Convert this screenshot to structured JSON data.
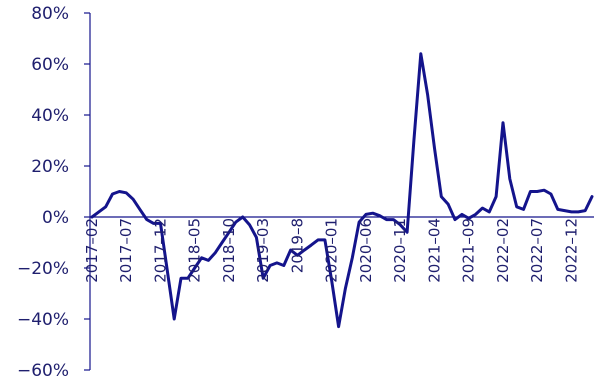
{
  "chart_data": {
    "type": "line",
    "title": "",
    "xlabel": "",
    "ylabel": "",
    "ylim": [
      -60,
      80
    ],
    "y_ticks": [
      "80%",
      "60%",
      "40%",
      "20%",
      "0%",
      "−20%",
      "−40%",
      "−60%"
    ],
    "y_tick_values": [
      80,
      60,
      40,
      20,
      0,
      -20,
      -40,
      -60
    ],
    "x_tick_labels": [
      "2017–02",
      "2017–07",
      "2017–12",
      "2018–05",
      "2018–10",
      "2019–03",
      "2019–8",
      "2020–01",
      "2020–06",
      "2020–11",
      "2021–04",
      "2021–09",
      "2022–02",
      "2022–07",
      "2022–12"
    ],
    "x_start": "2017-02",
    "grid": false,
    "line_color": "#14148c",
    "series": [
      {
        "values": [
          0.0,
          2.0,
          4.0,
          9.0,
          10.0,
          9.5,
          7.0,
          3.0,
          -1.0,
          -2.5,
          -2.5,
          -21.0,
          -40.0,
          -24.0,
          -24.0,
          -20.0,
          -16.0,
          -17.0,
          -14.0,
          -10.0,
          -6.0,
          -2.0,
          0.0,
          -3.0,
          -8.0,
          -24.0,
          -19.0,
          -18.0,
          -19.0,
          -13.0,
          -15.0,
          -13.0,
          -11.0,
          -9.0,
          -9.0,
          -25.0,
          -43.0,
          -28.0,
          -16.0,
          -2.0,
          1.0,
          1.5,
          0.5,
          -1.0,
          -1.0,
          -3.0,
          -6.0,
          30.0,
          64.0,
          48.0,
          27.0,
          8.0,
          5.0,
          -1.0,
          1.0,
          -0.5,
          1.0,
          3.5,
          2.0,
          8.0,
          37.0,
          15.0,
          4.0,
          3.0,
          10.0,
          10.0,
          10.5,
          9.0,
          3.0,
          2.5,
          2.0,
          2.0,
          2.5,
          8.0
        ]
      }
    ]
  }
}
